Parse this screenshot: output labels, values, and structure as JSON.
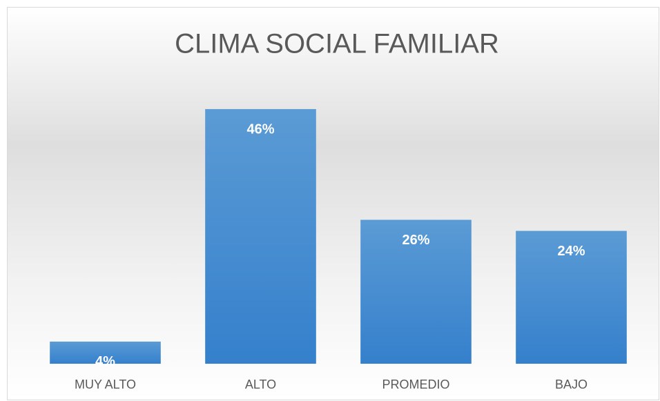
{
  "chart_data": {
    "type": "bar",
    "title": "CLIMA SOCIAL FAMILIAR",
    "categories": [
      "MUY ALTO",
      "ALTO",
      "PROMEDIO",
      "BAJO"
    ],
    "values": [
      4,
      46,
      26,
      24
    ],
    "value_labels": [
      "4%",
      "46%",
      "26%",
      "24%"
    ],
    "color": "#4a8fd6",
    "ylim": [
      0,
      50
    ]
  }
}
